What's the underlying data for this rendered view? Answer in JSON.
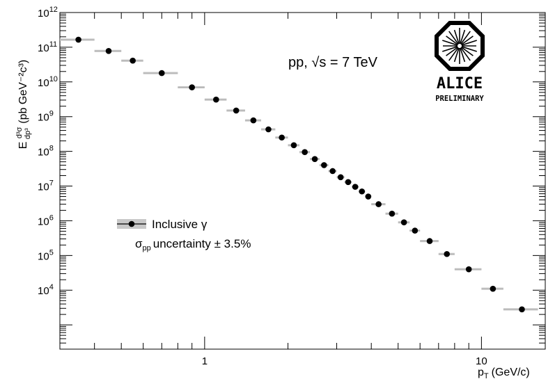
{
  "chart_data": {
    "type": "scatter",
    "xlabel": "p_T (GeV/c)",
    "ylabel": "E d^3σ/dp^3 (pb GeV^-2 c^3)",
    "xscale": "log",
    "yscale": "log",
    "xlim": [
      0.3,
      17
    ],
    "ylim": [
      200.0,
      1000000000000.0
    ],
    "grid": false,
    "x_tick_labels": [
      "1",
      "10"
    ],
    "y_tick_labels": [
      "10^4",
      "10^5",
      "10^6",
      "10^7",
      "10^8",
      "10^9",
      "10^10",
      "10^11",
      "10^12"
    ],
    "annotation": "pp, √s = 7 TeV",
    "legend": {
      "placement": "left-middle",
      "entry": "Inclusive γ",
      "note": "σ_pp uncertainty ± 3.5%"
    },
    "logo": {
      "text": "ALICE",
      "subtext": "PRELIMINARY"
    },
    "series": [
      {
        "name": "Inclusive γ",
        "points": [
          {
            "x": 0.35,
            "xlo": 0.3,
            "xhi": 0.4,
            "y": 165000000000.0
          },
          {
            "x": 0.45,
            "xlo": 0.4,
            "xhi": 0.5,
            "y": 78000000000.0
          },
          {
            "x": 0.55,
            "xlo": 0.5,
            "xhi": 0.6,
            "y": 41000000000.0
          },
          {
            "x": 0.7,
            "xlo": 0.6,
            "xhi": 0.8,
            "y": 18000000000.0
          },
          {
            "x": 0.9,
            "xlo": 0.8,
            "xhi": 1.0,
            "y": 7000000000.0
          },
          {
            "x": 1.1,
            "xlo": 1.0,
            "xhi": 1.2,
            "y": 3100000000.0
          },
          {
            "x": 1.3,
            "xlo": 1.2,
            "xhi": 1.4,
            "y": 1500000000.0
          },
          {
            "x": 1.5,
            "xlo": 1.4,
            "xhi": 1.6,
            "y": 780000000.0
          },
          {
            "x": 1.7,
            "xlo": 1.6,
            "xhi": 1.8,
            "y": 430000000.0
          },
          {
            "x": 1.9,
            "xlo": 1.8,
            "xhi": 2.0,
            "y": 250000000.0
          },
          {
            "x": 2.1,
            "xlo": 2.0,
            "xhi": 2.2,
            "y": 150000000.0
          },
          {
            "x": 2.3,
            "xlo": 2.2,
            "xhi": 2.4,
            "y": 95000000.0
          },
          {
            "x": 2.5,
            "xlo": 2.4,
            "xhi": 2.6,
            "y": 60000000.0
          },
          {
            "x": 2.7,
            "xlo": 2.6,
            "xhi": 2.8,
            "y": 40000000.0
          },
          {
            "x": 2.9,
            "xlo": 2.8,
            "xhi": 3.0,
            "y": 27000000.0
          },
          {
            "x": 3.1,
            "xlo": 3.0,
            "xhi": 3.2,
            "y": 18000000.0
          },
          {
            "x": 3.3,
            "xlo": 3.2,
            "xhi": 3.4,
            "y": 13000000.0
          },
          {
            "x": 3.5,
            "xlo": 3.4,
            "xhi": 3.6,
            "y": 9500000.0
          },
          {
            "x": 3.7,
            "xlo": 3.6,
            "xhi": 3.8,
            "y": 7000000.0
          },
          {
            "x": 3.9,
            "xlo": 3.8,
            "xhi": 4.0,
            "y": 5000000.0
          },
          {
            "x": 4.25,
            "xlo": 4.0,
            "xhi": 4.5,
            "y": 3000000.0
          },
          {
            "x": 4.75,
            "xlo": 4.5,
            "xhi": 5.0,
            "y": 1600000.0
          },
          {
            "x": 5.25,
            "xlo": 5.0,
            "xhi": 5.5,
            "y": 900000.0
          },
          {
            "x": 5.75,
            "xlo": 5.5,
            "xhi": 6.0,
            "y": 520000.0
          },
          {
            "x": 6.5,
            "xlo": 6.0,
            "xhi": 7.0,
            "y": 260000.0
          },
          {
            "x": 7.5,
            "xlo": 7.0,
            "xhi": 8.0,
            "y": 110000.0
          },
          {
            "x": 9.0,
            "xlo": 8.0,
            "xhi": 10.0,
            "y": 40000.0
          },
          {
            "x": 11.0,
            "xlo": 10.0,
            "xhi": 12.0,
            "y": 11000.0
          },
          {
            "x": 14.0,
            "xlo": 12.0,
            "xhi": 16.0,
            "y": 2800.0
          }
        ]
      }
    ]
  }
}
